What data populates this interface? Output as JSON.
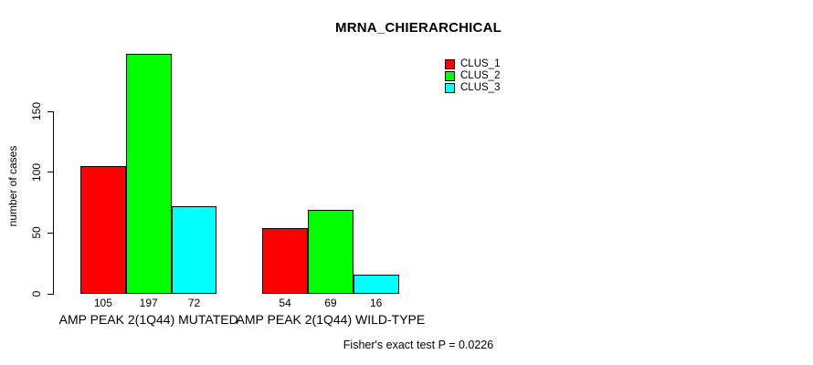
{
  "chart_data": {
    "type": "bar",
    "title": "MRNA_CHIERARCHICAL",
    "categories": [
      "AMP PEAK 2(1Q44) MUTATED",
      "AMP PEAK 2(1Q44) WILD-TYPE"
    ],
    "series": [
      {
        "name": "CLUS_1",
        "color": "#ff0000",
        "values": [
          105,
          54
        ]
      },
      {
        "name": "CLUS_2",
        "color": "#00ff00",
        "values": [
          197,
          69
        ]
      },
      {
        "name": "CLUS_3",
        "color": "#00ffff",
        "values": [
          72,
          16
        ]
      }
    ],
    "bar_value_labels": [
      [
        105,
        197,
        72
      ],
      [
        54,
        69,
        16
      ]
    ],
    "xlabel": "",
    "ylabel": "number of cases",
    "yticks": [
      0,
      50,
      100,
      150
    ],
    "ylim": [
      0,
      150
    ],
    "grid": false,
    "legend_position": "top-right",
    "annotation": "Fisher's exact test P = 0.0226"
  },
  "colors": {
    "axis": "#000000",
    "text": "#000000",
    "background": "#ffffff"
  }
}
